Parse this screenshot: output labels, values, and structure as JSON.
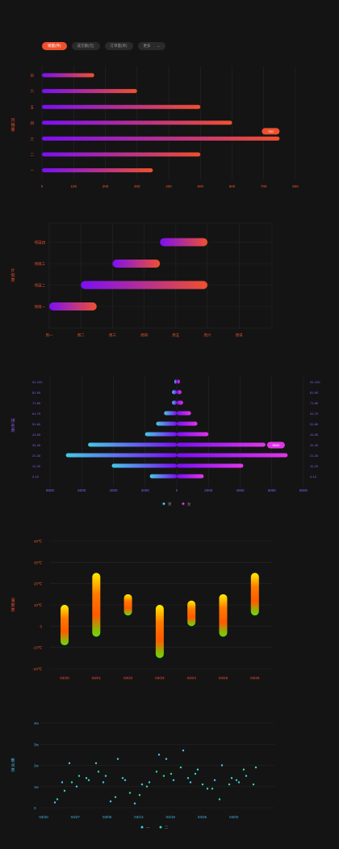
{
  "tabs": [
    {
      "label": "销量(件)"
    },
    {
      "label": "成交额(元)"
    },
    {
      "label": "订单量(单)"
    },
    {
      "label": "更多",
      "chevron": "⌄"
    }
  ],
  "colors": {
    "accent": "#f0502e",
    "purple": "#7b0ff5",
    "magenta": "#e036e8",
    "cyan": "#45c8e8",
    "yellow": "#ffee00",
    "green": "#5de20a",
    "grid": "#262626"
  },
  "chart_data": [
    {
      "type": "bar",
      "orientation": "horizontal",
      "ylabel": "日\n销\n量",
      "categories": [
        "一",
        "二",
        "三",
        "四",
        "五",
        "六",
        "日"
      ],
      "values": [
        350,
        500,
        750,
        600,
        500,
        300,
        165
      ],
      "xlim": [
        0,
        800
      ],
      "xticks": [
        "0",
        "100",
        "200",
        "300",
        "400",
        "500",
        "600",
        "700",
        "800"
      ],
      "tooltip": {
        "category": "三",
        "label": "750"
      }
    },
    {
      "type": "bar",
      "subtype": "gantt",
      "ylabel": "计\n划\n表",
      "categories": [
        "项目一",
        "项目二",
        "项目三",
        "项目四"
      ],
      "ranges": [
        [
          0,
          1.5
        ],
        [
          1,
          5
        ],
        [
          2,
          3.5
        ],
        [
          3.5,
          5
        ]
      ],
      "xticks": [
        "周一",
        "周二",
        "周三",
        "周四",
        "周五",
        "周六",
        "周日"
      ]
    },
    {
      "type": "bar",
      "subtype": "population-pyramid",
      "ylabel": "排\n名\n表",
      "categories": [
        "0-10",
        "11-20",
        "21-30",
        "31-40",
        "41-50",
        "51-60",
        "61-70",
        "71-80",
        "81-90",
        "91-100"
      ],
      "series": [
        {
          "name": "男",
          "values": [
            1700,
            4100,
            7000,
            5600,
            2000,
            1300,
            800,
            300,
            300,
            150
          ]
        },
        {
          "name": "女",
          "values": [
            1700,
            4200,
            7000,
            5600,
            2000,
            1300,
            900,
            400,
            300,
            200
          ]
        }
      ],
      "xlim": [
        -8000,
        8000
      ],
      "xticks": [
        "8000",
        "6000",
        "4000",
        "2000",
        "0",
        "2000",
        "4000",
        "6000",
        "8000"
      ],
      "tooltip": {
        "category": "31-40",
        "label": "5600"
      }
    },
    {
      "type": "bar",
      "subtype": "range",
      "ylabel": "温\n度\n表",
      "categories": [
        "03/20",
        "03/21",
        "03/22",
        "03/23",
        "03/24",
        "03/25",
        "03/26"
      ],
      "ranges": [
        [
          -9,
          10
        ],
        [
          -5,
          25
        ],
        [
          5,
          15
        ],
        [
          -15,
          10
        ],
        [
          0,
          12
        ],
        [
          -5,
          15
        ],
        [
          5,
          25
        ]
      ],
      "ylim": [
        -20,
        40
      ],
      "yticks": [
        "40℃",
        "30℃",
        "20℃",
        "10℃",
        "0",
        "-10℃",
        "-20℃"
      ]
    },
    {
      "type": "scatter",
      "ylabel": "散\n点\n表",
      "ylim": [
        0,
        4
      ],
      "yticks": [
        "4w",
        "3w",
        "2w",
        "1w",
        "0"
      ],
      "xticks": [
        "03/20",
        "03/27",
        "03/05",
        "03/13",
        "03/19",
        "03/26",
        "04/02"
      ],
      "series": [
        {
          "name": "一",
          "points": [
            [
              0.02,
              0.25
            ],
            [
              0.05,
              1.2
            ],
            [
              0.08,
              2.1
            ],
            [
              0.11,
              1.0
            ],
            [
              0.15,
              1.4
            ],
            [
              0.19,
              2.1
            ],
            [
              0.22,
              1.2
            ],
            [
              0.25,
              0.3
            ],
            [
              0.28,
              2.3
            ],
            [
              0.31,
              1.3
            ],
            [
              0.35,
              0.2
            ],
            [
              0.38,
              1.1
            ],
            [
              0.41,
              1.2
            ],
            [
              0.45,
              2.5
            ],
            [
              0.48,
              2.3
            ],
            [
              0.51,
              1.3
            ],
            [
              0.55,
              2.7
            ],
            [
              0.58,
              1.2
            ],
            [
              0.61,
              1.8
            ],
            [
              0.65,
              0.9
            ],
            [
              0.68,
              1.3
            ],
            [
              0.71,
              2.0
            ],
            [
              0.75,
              1.4
            ],
            [
              0.78,
              1.2
            ],
            [
              0.81,
              1.5
            ],
            [
              0.85,
              1.9
            ]
          ]
        },
        {
          "name": "二",
          "points": [
            [
              0.03,
              0.4
            ],
            [
              0.06,
              0.8
            ],
            [
              0.09,
              1.2
            ],
            [
              0.12,
              1.5
            ],
            [
              0.16,
              1.3
            ],
            [
              0.2,
              1.7
            ],
            [
              0.23,
              1.5
            ],
            [
              0.27,
              0.5
            ],
            [
              0.3,
              1.4
            ],
            [
              0.33,
              0.7
            ],
            [
              0.37,
              0.6
            ],
            [
              0.4,
              1.0
            ],
            [
              0.44,
              1.7
            ],
            [
              0.47,
              1.5
            ],
            [
              0.5,
              1.6
            ],
            [
              0.54,
              1.9
            ],
            [
              0.57,
              1.4
            ],
            [
              0.6,
              1.6
            ],
            [
              0.63,
              1.1
            ],
            [
              0.67,
              0.9
            ],
            [
              0.7,
              0.4
            ],
            [
              0.74,
              1.1
            ],
            [
              0.77,
              1.3
            ],
            [
              0.8,
              1.8
            ],
            [
              0.84,
              1.1
            ]
          ]
        }
      ]
    }
  ]
}
